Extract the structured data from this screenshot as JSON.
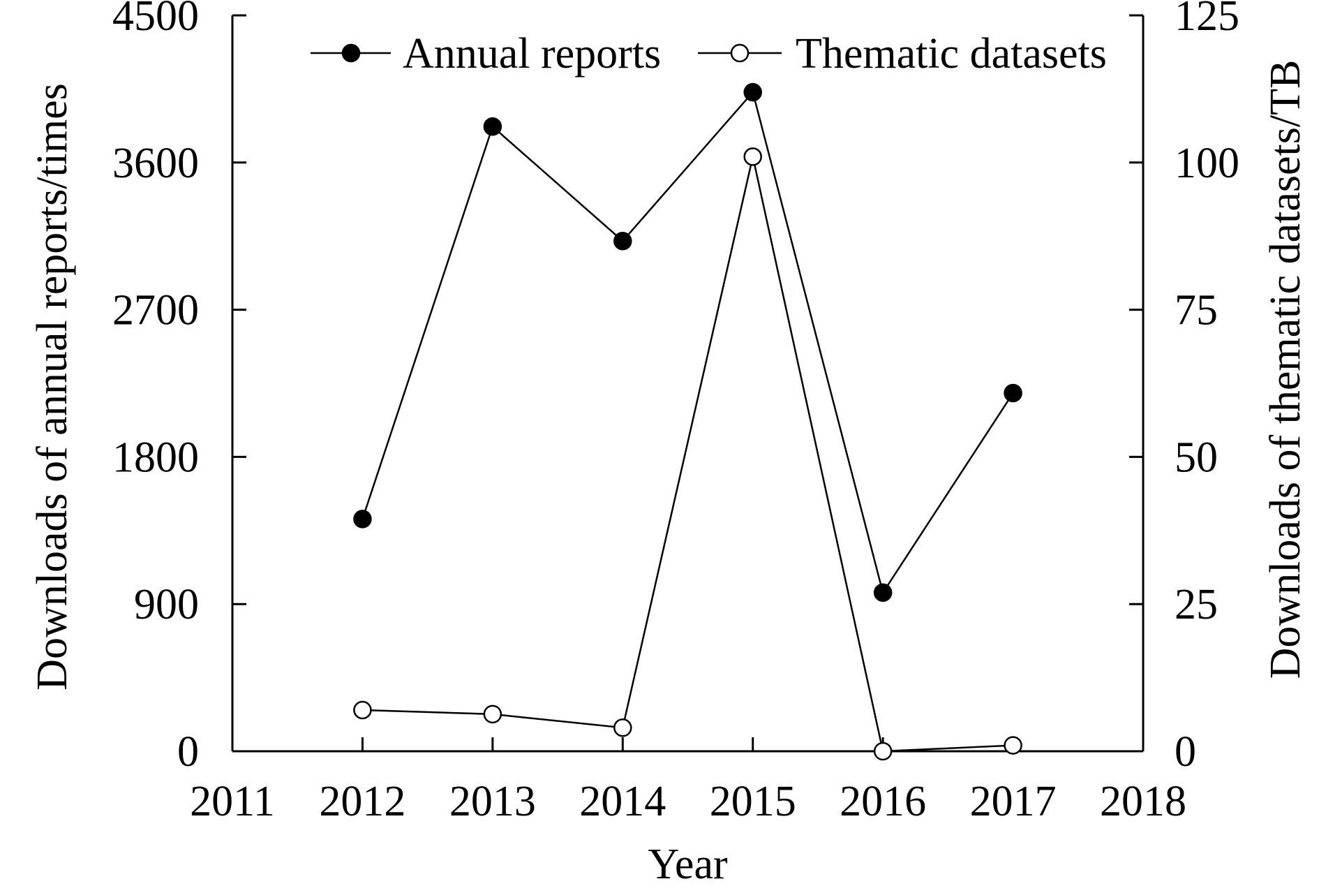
{
  "chart_data": {
    "type": "line",
    "title": "",
    "xlabel": "Year",
    "ylabel_left": "Downloads of annual reports/times",
    "ylabel_right": "Downloads of thematic datasets/TB",
    "xlim": [
      2011,
      2018
    ],
    "ylim_left": [
      0,
      4500
    ],
    "ylim_right": [
      0,
      125
    ],
    "x_ticks": [
      2011,
      2012,
      2013,
      2014,
      2015,
      2016,
      2017,
      2018
    ],
    "y_ticks_left": [
      0,
      900,
      1800,
      2700,
      3600,
      4500
    ],
    "y_ticks_right": [
      0,
      25,
      50,
      75,
      100,
      125
    ],
    "grid": false,
    "legend_position": "top-right",
    "series": [
      {
        "name": "Annual reports",
        "axis": "left",
        "marker": "filled-circle",
        "x": [
          2012,
          2013,
          2014,
          2015,
          2016,
          2017
        ],
        "values": [
          1420,
          3820,
          3120,
          4030,
          970,
          2190
        ]
      },
      {
        "name": "Thematic datasets",
        "axis": "right",
        "marker": "open-circle",
        "x": [
          2012,
          2013,
          2014,
          2015,
          2016,
          2017
        ],
        "values": [
          7,
          6.3,
          4,
          101,
          0,
          1
        ]
      }
    ],
    "colors": {
      "line": "#000000",
      "marker_fill_open": "#ffffff",
      "marker_fill_solid": "#000000"
    }
  }
}
